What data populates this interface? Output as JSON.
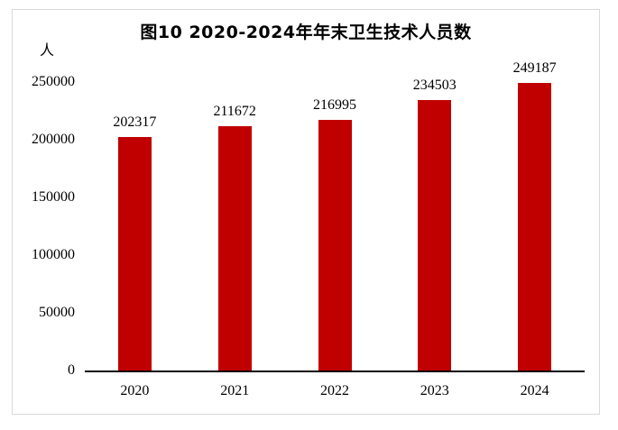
{
  "chart_data": {
    "type": "bar",
    "title": "图10 2020-2024年年末卫生技术人员数",
    "categories": [
      "2020",
      "2021",
      "2022",
      "2023",
      "2024"
    ],
    "values": [
      202317,
      211672,
      216995,
      234503,
      249187
    ],
    "xlabel": "",
    "ylabel": "人",
    "ylim": [
      0,
      250000
    ],
    "yticks": [
      0,
      50000,
      100000,
      150000,
      200000,
      250000
    ],
    "bar_color": "#C00000",
    "axis_color": "#000000",
    "figure_border_color": "#d9d9d9",
    "data_labels": true,
    "grid": false,
    "legend": "none"
  }
}
